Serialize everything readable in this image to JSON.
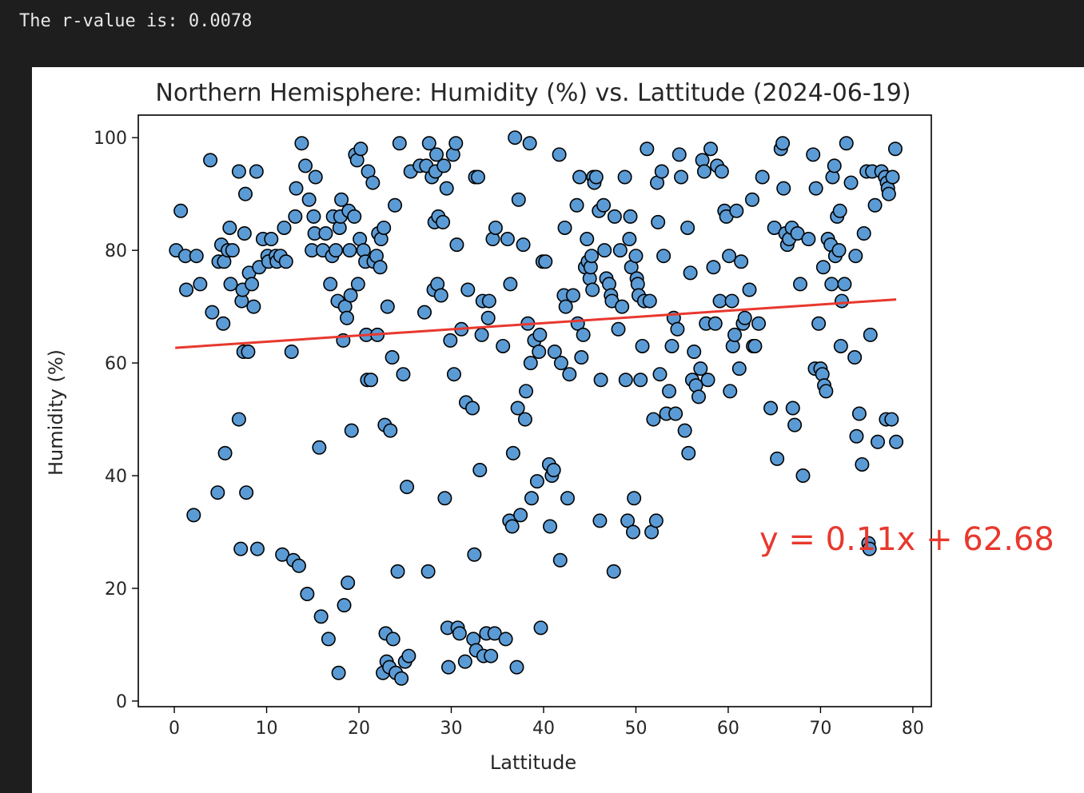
{
  "output": {
    "stdout_text": "The r-value is: 0.0078"
  },
  "chart_data": {
    "type": "scatter",
    "title": "Northern Hemisphere: Humidity (%) vs. Lattitude (2024-06-19)",
    "xlabel": "Lattitude",
    "ylabel": "Humidity (%)",
    "xlim": [
      -3.9,
      82
    ],
    "ylim": [
      -1,
      104
    ],
    "xticks": [
      0,
      10,
      20,
      30,
      40,
      50,
      60,
      70,
      80
    ],
    "yticks": [
      0,
      20,
      40,
      60,
      80,
      100
    ],
    "grid": false,
    "marker_color": "#5b9bd5",
    "marker_edge_color": "#000000",
    "line_color": "#e8382e",
    "regression": {
      "slope": 0.11,
      "intercept": 62.68,
      "x_range": [
        0.1,
        78.2
      ],
      "label": "y = 0.11x + 62.68"
    },
    "points": [
      [
        0.2,
        80
      ],
      [
        0.7,
        87
      ],
      [
        1.2,
        79
      ],
      [
        1.3,
        73
      ],
      [
        2.1,
        33
      ],
      [
        2.4,
        79
      ],
      [
        2.8,
        74
      ],
      [
        3.9,
        96
      ],
      [
        4.1,
        69
      ],
      [
        4.7,
        37
      ],
      [
        4.8,
        78
      ],
      [
        5.1,
        81
      ],
      [
        5.3,
        67
      ],
      [
        5.4,
        78
      ],
      [
        5.5,
        44
      ],
      [
        5.8,
        80
      ],
      [
        6,
        84
      ],
      [
        6.1,
        74
      ],
      [
        6.3,
        80
      ],
      [
        7,
        94
      ],
      [
        7,
        50
      ],
      [
        7.2,
        27
      ],
      [
        7.3,
        71
      ],
      [
        7.4,
        73
      ],
      [
        7.5,
        62
      ],
      [
        7.6,
        83
      ],
      [
        7.7,
        90
      ],
      [
        7.8,
        37
      ],
      [
        8,
        62
      ],
      [
        8.1,
        76
      ],
      [
        8.4,
        74
      ],
      [
        8.6,
        70
      ],
      [
        8.9,
        94
      ],
      [
        9,
        27
      ],
      [
        9.2,
        77
      ],
      [
        9.6,
        82
      ],
      [
        10.1,
        79
      ],
      [
        10.2,
        78
      ],
      [
        10.5,
        82
      ],
      [
        11,
        79
      ],
      [
        11.1,
        78
      ],
      [
        11.5,
        79
      ],
      [
        11.7,
        26
      ],
      [
        11.9,
        84
      ],
      [
        12.1,
        78
      ],
      [
        12.7,
        62
      ],
      [
        12.9,
        25
      ],
      [
        13.1,
        86
      ],
      [
        13.2,
        91
      ],
      [
        13.5,
        24
      ],
      [
        13.8,
        99
      ],
      [
        14.2,
        95
      ],
      [
        14.4,
        19
      ],
      [
        14.6,
        89
      ],
      [
        14.9,
        80
      ],
      [
        15.1,
        86
      ],
      [
        15.2,
        83
      ],
      [
        15.3,
        93
      ],
      [
        15.7,
        45
      ],
      [
        15.9,
        15
      ],
      [
        16.1,
        80
      ],
      [
        16.4,
        83
      ],
      [
        16.7,
        11
      ],
      [
        16.9,
        74
      ],
      [
        17.1,
        79
      ],
      [
        17.2,
        86
      ],
      [
        17.5,
        80
      ],
      [
        17.7,
        71
      ],
      [
        17.8,
        5
      ],
      [
        17.9,
        84
      ],
      [
        18,
        86
      ],
      [
        18.1,
        89
      ],
      [
        18.3,
        64
      ],
      [
        18.4,
        17
      ],
      [
        18.5,
        70
      ],
      [
        18.7,
        68
      ],
      [
        18.8,
        21
      ],
      [
        18.9,
        87
      ],
      [
        19,
        80
      ],
      [
        19.1,
        72
      ],
      [
        19.2,
        48
      ],
      [
        19.5,
        86
      ],
      [
        19.6,
        97
      ],
      [
        19.8,
        96
      ],
      [
        19.9,
        74
      ],
      [
        20.1,
        82
      ],
      [
        20.2,
        98
      ],
      [
        20.5,
        80
      ],
      [
        20.7,
        78
      ],
      [
        20.8,
        65
      ],
      [
        20.9,
        57
      ],
      [
        21,
        94
      ],
      [
        21.3,
        57
      ],
      [
        21.5,
        92
      ],
      [
        21.6,
        78
      ],
      [
        21.9,
        79
      ],
      [
        22,
        65
      ],
      [
        22.1,
        83
      ],
      [
        22.3,
        77
      ],
      [
        22.4,
        82
      ],
      [
        22.6,
        5
      ],
      [
        22.7,
        84
      ],
      [
        22.8,
        49
      ],
      [
        22.9,
        12
      ],
      [
        23,
        7
      ],
      [
        23.1,
        70
      ],
      [
        23.3,
        6
      ],
      [
        23.4,
        48
      ],
      [
        23.6,
        61
      ],
      [
        23.7,
        11
      ],
      [
        23.9,
        88
      ],
      [
        24,
        5
      ],
      [
        24.2,
        23
      ],
      [
        24.4,
        99
      ],
      [
        24.6,
        4
      ],
      [
        24.8,
        58
      ],
      [
        25,
        7
      ],
      [
        25.2,
        38
      ],
      [
        25.4,
        8
      ],
      [
        25.6,
        94
      ],
      [
        26.6,
        95
      ],
      [
        27.1,
        69
      ],
      [
        27.3,
        95
      ],
      [
        27.5,
        23
      ],
      [
        27.6,
        99
      ],
      [
        27.9,
        93
      ],
      [
        28.1,
        73
      ],
      [
        28.2,
        85
      ],
      [
        28.3,
        94
      ],
      [
        28.4,
        97
      ],
      [
        28.5,
        74
      ],
      [
        28.6,
        86
      ],
      [
        28.9,
        72
      ],
      [
        29.1,
        85
      ],
      [
        29.2,
        95
      ],
      [
        29.3,
        36
      ],
      [
        29.5,
        91
      ],
      [
        29.6,
        13
      ],
      [
        29.7,
        6
      ],
      [
        29.9,
        64
      ],
      [
        30.2,
        97
      ],
      [
        30.3,
        58
      ],
      [
        30.5,
        99
      ],
      [
        30.6,
        81
      ],
      [
        30.7,
        13
      ],
      [
        30.9,
        12
      ],
      [
        31.1,
        66
      ],
      [
        31.5,
        7
      ],
      [
        31.6,
        53
      ],
      [
        31.8,
        73
      ],
      [
        32.3,
        52
      ],
      [
        32.4,
        11
      ],
      [
        32.5,
        26
      ],
      [
        32.6,
        93
      ],
      [
        32.7,
        9
      ],
      [
        32.9,
        93
      ],
      [
        33.1,
        41
      ],
      [
        33.3,
        65
      ],
      [
        33.4,
        71
      ],
      [
        33.5,
        8
      ],
      [
        33.8,
        12
      ],
      [
        34,
        68
      ],
      [
        34.1,
        71
      ],
      [
        34.3,
        8
      ],
      [
        34.5,
        82
      ],
      [
        34.7,
        12
      ],
      [
        34.8,
        84
      ],
      [
        35.6,
        63
      ],
      [
        35.9,
        11
      ],
      [
        36.1,
        82
      ],
      [
        36.3,
        32
      ],
      [
        36.4,
        74
      ],
      [
        36.6,
        31
      ],
      [
        36.7,
        44
      ],
      [
        36.9,
        100
      ],
      [
        37.1,
        6
      ],
      [
        37.2,
        52
      ],
      [
        37.3,
        89
      ],
      [
        37.5,
        33
      ],
      [
        37.8,
        81
      ],
      [
        38,
        50
      ],
      [
        38.1,
        55
      ],
      [
        38.3,
        67
      ],
      [
        38.5,
        99
      ],
      [
        38.6,
        60
      ],
      [
        38.7,
        36
      ],
      [
        39,
        64
      ],
      [
        39.3,
        39
      ],
      [
        39.5,
        62
      ],
      [
        39.6,
        65
      ],
      [
        39.7,
        13
      ],
      [
        39.9,
        78
      ],
      [
        40.2,
        78
      ],
      [
        40.6,
        42
      ],
      [
        40.7,
        31
      ],
      [
        40.9,
        40
      ],
      [
        41.1,
        41
      ],
      [
        41.2,
        62
      ],
      [
        41.7,
        97
      ],
      [
        41.8,
        25
      ],
      [
        41.9,
        60
      ],
      [
        42.2,
        72
      ],
      [
        42.3,
        84
      ],
      [
        42.4,
        70
      ],
      [
        42.6,
        36
      ],
      [
        42.8,
        58
      ],
      [
        43.2,
        72
      ],
      [
        43.6,
        88
      ],
      [
        43.7,
        67
      ],
      [
        43.9,
        93
      ],
      [
        44.1,
        61
      ],
      [
        44.3,
        65
      ],
      [
        44.5,
        77
      ],
      [
        44.7,
        82
      ],
      [
        44.8,
        78
      ],
      [
        45,
        75
      ],
      [
        45.1,
        77
      ],
      [
        45.2,
        79
      ],
      [
        45.3,
        73
      ],
      [
        45.4,
        93
      ],
      [
        45.5,
        92
      ],
      [
        45.7,
        93
      ],
      [
        46,
        87
      ],
      [
        46.1,
        32
      ],
      [
        46.2,
        57
      ],
      [
        46.5,
        88
      ],
      [
        46.6,
        80
      ],
      [
        46.8,
        75
      ],
      [
        47.1,
        74
      ],
      [
        47.3,
        72
      ],
      [
        47.4,
        71
      ],
      [
        47.6,
        23
      ],
      [
        47.7,
        86
      ],
      [
        48.1,
        66
      ],
      [
        48.3,
        80
      ],
      [
        48.5,
        70
      ],
      [
        48.8,
        93
      ],
      [
        48.9,
        57
      ],
      [
        49.1,
        32
      ],
      [
        49.3,
        82
      ],
      [
        49.4,
        86
      ],
      [
        49.5,
        77
      ],
      [
        49.7,
        30
      ],
      [
        49.8,
        36
      ],
      [
        50,
        79
      ],
      [
        50.1,
        75
      ],
      [
        50.2,
        74
      ],
      [
        50.3,
        72
      ],
      [
        50.5,
        57
      ],
      [
        50.7,
        63
      ],
      [
        50.9,
        71
      ],
      [
        51.2,
        98
      ],
      [
        51.5,
        71
      ],
      [
        51.7,
        30
      ],
      [
        51.9,
        50
      ],
      [
        52.2,
        32
      ],
      [
        52.3,
        92
      ],
      [
        52.4,
        85
      ],
      [
        52.6,
        58
      ],
      [
        52.8,
        94
      ],
      [
        53,
        79
      ],
      [
        53.3,
        51
      ],
      [
        53.6,
        55
      ],
      [
        53.9,
        63
      ],
      [
        54.1,
        68
      ],
      [
        54.3,
        51
      ],
      [
        54.5,
        66
      ],
      [
        54.7,
        97
      ],
      [
        54.9,
        93
      ],
      [
        55.3,
        48
      ],
      [
        55.6,
        84
      ],
      [
        55.7,
        44
      ],
      [
        55.9,
        76
      ],
      [
        56.1,
        57
      ],
      [
        56.3,
        62
      ],
      [
        56.5,
        56
      ],
      [
        56.8,
        54
      ],
      [
        57,
        59
      ],
      [
        57.2,
        96
      ],
      [
        57.4,
        94
      ],
      [
        57.6,
        67
      ],
      [
        57.8,
        57
      ],
      [
        58.1,
        98
      ],
      [
        58.4,
        77
      ],
      [
        58.6,
        67
      ],
      [
        58.8,
        95
      ],
      [
        59.1,
        71
      ],
      [
        59.3,
        94
      ],
      [
        59.6,
        87
      ],
      [
        59.8,
        86
      ],
      [
        60.1,
        79
      ],
      [
        60.2,
        55
      ],
      [
        60.4,
        71
      ],
      [
        60.5,
        63
      ],
      [
        60.7,
        65
      ],
      [
        60.9,
        87
      ],
      [
        61.2,
        59
      ],
      [
        61.4,
        78
      ],
      [
        61.6,
        67
      ],
      [
        61.8,
        68
      ],
      [
        62.3,
        73
      ],
      [
        62.6,
        89
      ],
      [
        62.7,
        63
      ],
      [
        62.9,
        63
      ],
      [
        63.3,
        67
      ],
      [
        63.7,
        93
      ],
      [
        64.6,
        52
      ],
      [
        65,
        84
      ],
      [
        65.3,
        43
      ],
      [
        65.7,
        98
      ],
      [
        65.9,
        99
      ],
      [
        66,
        91
      ],
      [
        66.2,
        83
      ],
      [
        66.4,
        81
      ],
      [
        66.6,
        82
      ],
      [
        66.9,
        84
      ],
      [
        67,
        52
      ],
      [
        67.2,
        49
      ],
      [
        67.5,
        83
      ],
      [
        67.8,
        74
      ],
      [
        68.1,
        40
      ],
      [
        68.7,
        82
      ],
      [
        69.2,
        97
      ],
      [
        69.4,
        59
      ],
      [
        69.5,
        91
      ],
      [
        69.8,
        67
      ],
      [
        70,
        59
      ],
      [
        70.2,
        58
      ],
      [
        70.3,
        77
      ],
      [
        70.4,
        56
      ],
      [
        70.6,
        55
      ],
      [
        70.8,
        82
      ],
      [
        71.1,
        81
      ],
      [
        71.2,
        74
      ],
      [
        71.3,
        93
      ],
      [
        71.5,
        95
      ],
      [
        71.6,
        79
      ],
      [
        71.8,
        86
      ],
      [
        72,
        80
      ],
      [
        72.1,
        87
      ],
      [
        72.2,
        63
      ],
      [
        72.3,
        71
      ],
      [
        72.6,
        74
      ],
      [
        72.8,
        99
      ],
      [
        73.3,
        92
      ],
      [
        73.7,
        61
      ],
      [
        73.8,
        79
      ],
      [
        73.9,
        47
      ],
      [
        74.2,
        51
      ],
      [
        74.5,
        42
      ],
      [
        74.7,
        83
      ],
      [
        75,
        94
      ],
      [
        75.2,
        28
      ],
      [
        75.3,
        27
      ],
      [
        75.4,
        65
      ],
      [
        75.6,
        94
      ],
      [
        75.9,
        88
      ],
      [
        76.2,
        46
      ],
      [
        76.6,
        94
      ],
      [
        77,
        93
      ],
      [
        77.1,
        50
      ],
      [
        77.2,
        92
      ],
      [
        77.3,
        91
      ],
      [
        77.4,
        90
      ],
      [
        77.7,
        50
      ],
      [
        77.8,
        93
      ],
      [
        78.1,
        98
      ],
      [
        78.2,
        46
      ]
    ]
  }
}
